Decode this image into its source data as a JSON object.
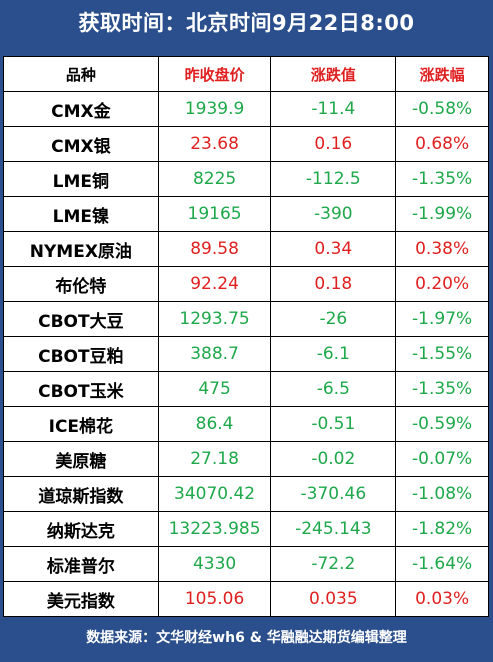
{
  "title": "获取时间：北京时间9月22日8:00",
  "headers": [
    "品种",
    "昨收盘价",
    "涨跌值",
    "涨跌幅"
  ],
  "rows": [
    {
      "name": "CMX金",
      "close": "1939.9",
      "change": "-11.4",
      "pct": "-0.58%",
      "dir": "down"
    },
    {
      "name": "CMX银",
      "close": "23.68",
      "change": "0.16",
      "pct": "0.68%",
      "dir": "up"
    },
    {
      "name": "LME铜",
      "close": "8225",
      "change": "-112.5",
      "pct": "-1.35%",
      "dir": "down"
    },
    {
      "name": "LME镍",
      "close": "19165",
      "change": "-390",
      "pct": "-1.99%",
      "dir": "down"
    },
    {
      "name": "NYMEX原油",
      "close": "89.58",
      "change": "0.34",
      "pct": "0.38%",
      "dir": "up"
    },
    {
      "name": "布伦特",
      "close": "92.24",
      "change": "0.18",
      "pct": "0.20%",
      "dir": "up"
    },
    {
      "name": "CBOT大豆",
      "close": "1293.75",
      "change": "-26",
      "pct": "-1.97%",
      "dir": "down"
    },
    {
      "name": "CBOT豆粕",
      "close": "388.7",
      "change": "-6.1",
      "pct": "-1.55%",
      "dir": "down"
    },
    {
      "name": "CBOT玉米",
      "close": "475",
      "change": "-6.5",
      "pct": "-1.35%",
      "dir": "down"
    },
    {
      "name": "ICE棉花",
      "close": "86.4",
      "change": "-0.51",
      "pct": "-0.59%",
      "dir": "down"
    },
    {
      "name": "美原糖",
      "close": "27.18",
      "change": "-0.02",
      "pct": "-0.07%",
      "dir": "down"
    },
    {
      "name": "道琼斯指数",
      "close": "34070.42",
      "change": "-370.46",
      "pct": "-1.08%",
      "dir": "down"
    },
    {
      "name": "纳斯达克",
      "close": "13223.985",
      "change": "-245.143",
      "pct": "-1.82%",
      "dir": "down"
    },
    {
      "name": "标准普尔",
      "close": "4330",
      "change": "-72.2",
      "pct": "-1.64%",
      "dir": "down"
    },
    {
      "name": "美元指数",
      "close": "105.06",
      "change": "0.035",
      "pct": "0.03%",
      "dir": "up"
    }
  ],
  "footer": "数据来源：文华财经wh6 & 华融融达期货编辑整理",
  "colors": {
    "up": "#e02020",
    "down": "#1ea84a",
    "background": "#2a4f8c"
  }
}
